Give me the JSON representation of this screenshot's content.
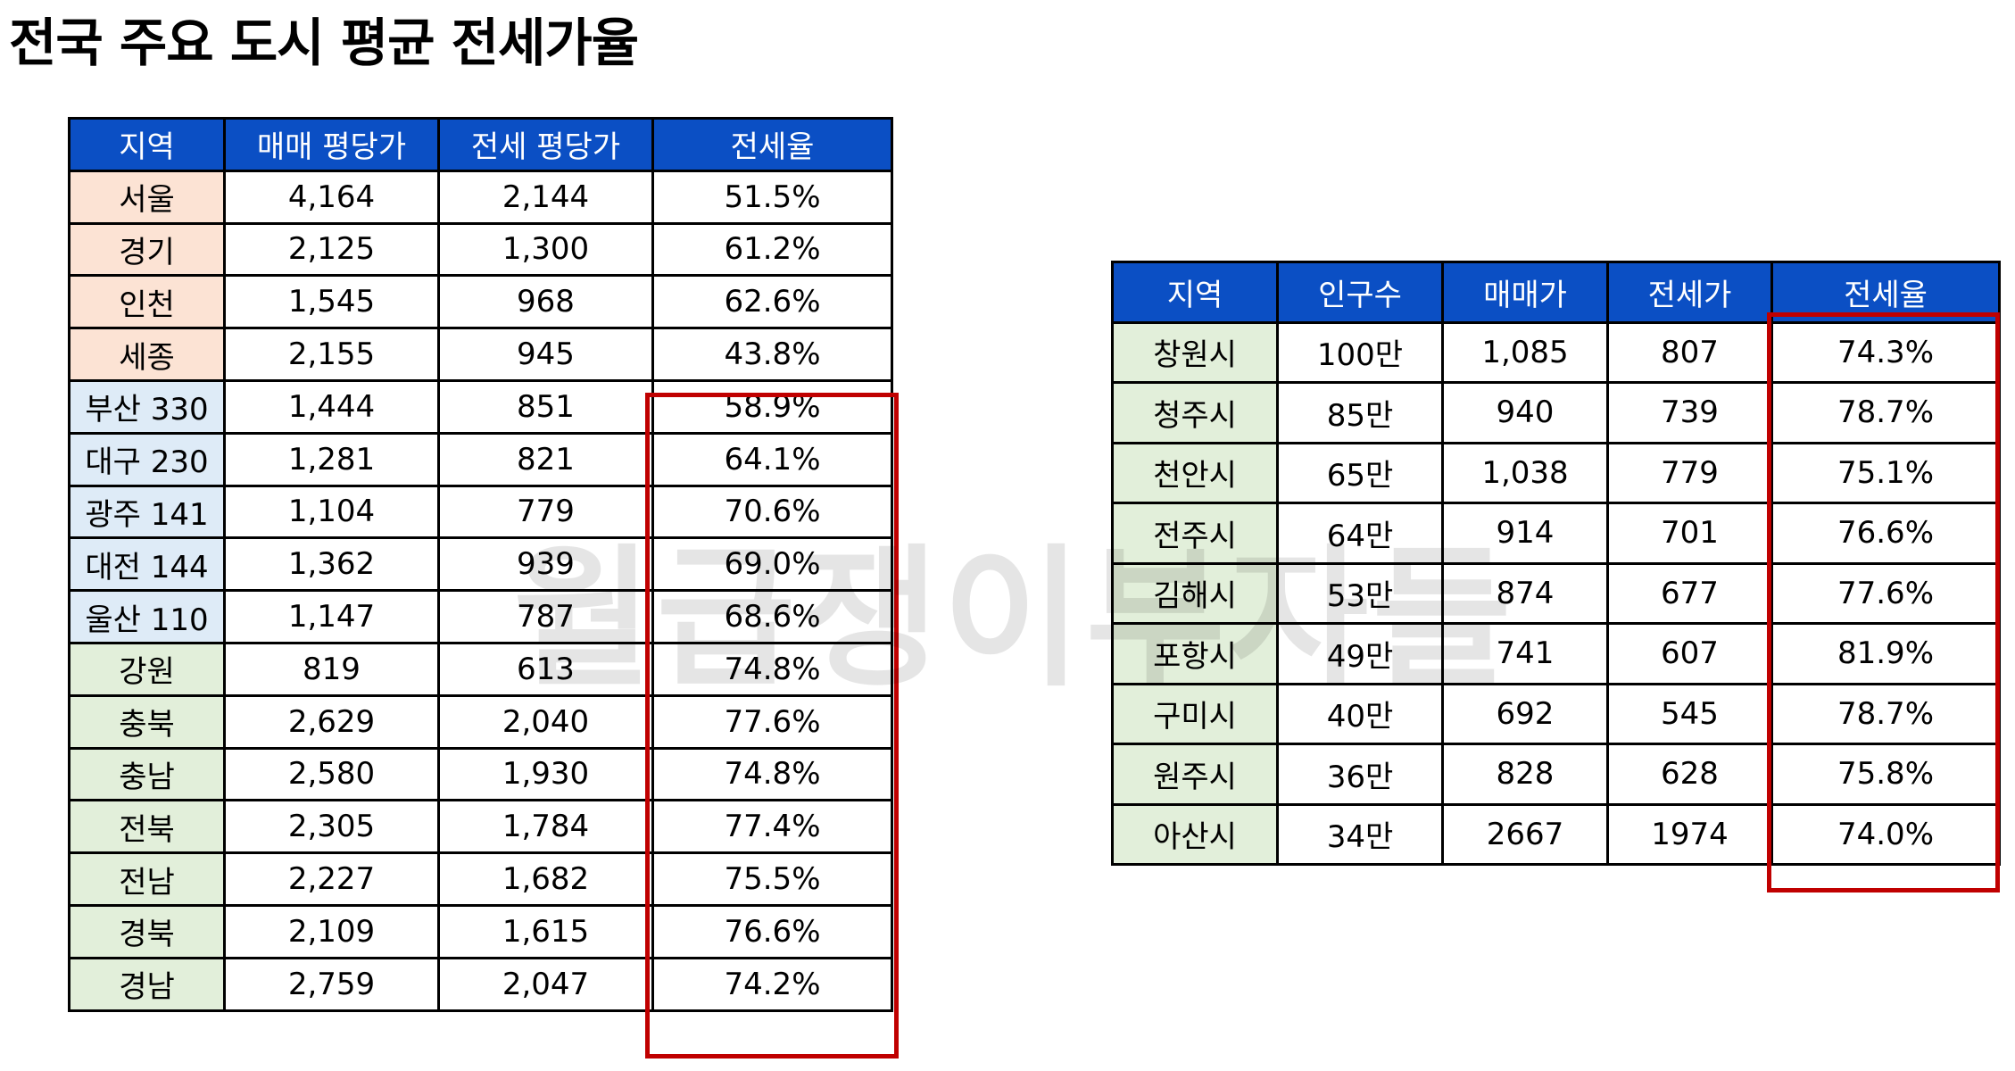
{
  "title": "전국  주요 도시 평균 전세가율",
  "watermark": "월급쟁이부자들",
  "colors": {
    "header_bg": "#0b4fc4",
    "capital_bg": "#fce3d4",
    "metro_bg": "#deebf7",
    "province_bg": "#e2efda",
    "highlight": "#c00000"
  },
  "left_table": {
    "headers": [
      "지역",
      "매매 평당가",
      "전세 평당가",
      "전세율"
    ],
    "rows": [
      {
        "region": "서울",
        "sale": "4,164",
        "jeonse": "2,144",
        "ratio": "51.5%",
        "group": "capital"
      },
      {
        "region": "경기",
        "sale": "2,125",
        "jeonse": "1,300",
        "ratio": "61.2%",
        "group": "capital"
      },
      {
        "region": "인천",
        "sale": "1,545",
        "jeonse": "968",
        "ratio": "62.6%",
        "group": "capital"
      },
      {
        "region": "세종",
        "sale": "2,155",
        "jeonse": "945",
        "ratio": "43.8%",
        "group": "capital"
      },
      {
        "region": "부산 330",
        "sale": "1,444",
        "jeonse": "851",
        "ratio": "58.9%",
        "group": "metro"
      },
      {
        "region": "대구 230",
        "sale": "1,281",
        "jeonse": "821",
        "ratio": "64.1%",
        "group": "metro"
      },
      {
        "region": "광주 141",
        "sale": "1,104",
        "jeonse": "779",
        "ratio": "70.6%",
        "group": "metro"
      },
      {
        "region": "대전 144",
        "sale": "1,362",
        "jeonse": "939",
        "ratio": "69.0%",
        "group": "metro"
      },
      {
        "region": "울산 110",
        "sale": "1,147",
        "jeonse": "787",
        "ratio": "68.6%",
        "group": "metro"
      },
      {
        "region": "강원",
        "sale": "819",
        "jeonse": "613",
        "ratio": "74.8%",
        "group": "province"
      },
      {
        "region": "충북",
        "sale": "2,629",
        "jeonse": "2,040",
        "ratio": "77.6%",
        "group": "province"
      },
      {
        "region": "충남",
        "sale": "2,580",
        "jeonse": "1,930",
        "ratio": "74.8%",
        "group": "province"
      },
      {
        "region": "전북",
        "sale": "2,305",
        "jeonse": "1,784",
        "ratio": "77.4%",
        "group": "province"
      },
      {
        "region": "전남",
        "sale": "2,227",
        "jeonse": "1,682",
        "ratio": "75.5%",
        "group": "province"
      },
      {
        "region": "경북",
        "sale": "2,109",
        "jeonse": "1,615",
        "ratio": "76.6%",
        "group": "province"
      },
      {
        "region": "경남",
        "sale": "2,759",
        "jeonse": "2,047",
        "ratio": "74.2%",
        "group": "province"
      }
    ]
  },
  "right_table": {
    "headers": [
      "지역",
      "인구수",
      "매매가",
      "전세가",
      "전세율"
    ],
    "rows": [
      {
        "city": "창원시",
        "population": "100만",
        "sale": "1,085",
        "jeonse": "807",
        "ratio": "74.3%"
      },
      {
        "city": "청주시",
        "population": "85만",
        "sale": "940",
        "jeonse": "739",
        "ratio": "78.7%"
      },
      {
        "city": "천안시",
        "population": "65만",
        "sale": "1,038",
        "jeonse": "779",
        "ratio": "75.1%"
      },
      {
        "city": "전주시",
        "population": "64만",
        "sale": "914",
        "jeonse": "701",
        "ratio": "76.6%"
      },
      {
        "city": "김해시",
        "population": "53만",
        "sale": "874",
        "jeonse": "677",
        "ratio": "77.6%"
      },
      {
        "city": "포항시",
        "population": "49만",
        "sale": "741",
        "jeonse": "607",
        "ratio": "81.9%"
      },
      {
        "city": "구미시",
        "population": "40만",
        "sale": "692",
        "jeonse": "545",
        "ratio": "78.7%"
      },
      {
        "city": "원주시",
        "population": "36만",
        "sale": "828",
        "jeonse": "628",
        "ratio": "75.8%"
      },
      {
        "city": "아산시",
        "population": "34만",
        "sale": "2667",
        "jeonse": "1974",
        "ratio": "74.0%"
      }
    ]
  }
}
